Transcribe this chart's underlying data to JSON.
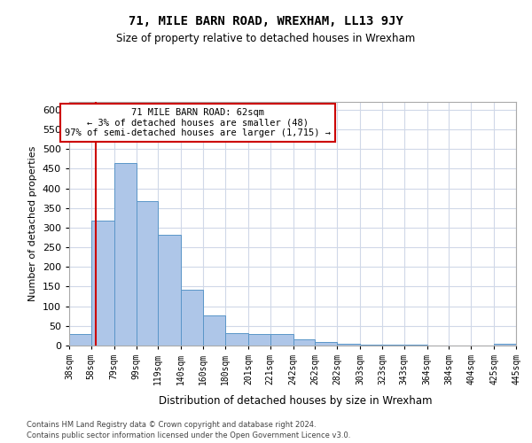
{
  "title": "71, MILE BARN ROAD, WREXHAM, LL13 9JY",
  "subtitle": "Size of property relative to detached houses in Wrexham",
  "xlabel": "Distribution of detached houses by size in Wrexham",
  "ylabel": "Number of detached properties",
  "footnote1": "Contains HM Land Registry data © Crown copyright and database right 2024.",
  "footnote2": "Contains public sector information licensed under the Open Government Licence v3.0.",
  "bin_labels": [
    "38sqm",
    "58sqm",
    "79sqm",
    "99sqm",
    "119sqm",
    "140sqm",
    "160sqm",
    "180sqm",
    "201sqm",
    "221sqm",
    "242sqm",
    "262sqm",
    "282sqm",
    "303sqm",
    "323sqm",
    "343sqm",
    "364sqm",
    "384sqm",
    "404sqm",
    "425sqm",
    "445sqm"
  ],
  "bar_values": [
    30,
    317,
    465,
    367,
    282,
    143,
    76,
    31,
    29,
    29,
    15,
    8,
    4,
    2,
    2,
    2,
    1,
    1,
    1,
    5
  ],
  "bar_color": "#aec6e8",
  "bar_edge_color": "#5a96c8",
  "property_line_x": 62,
  "bin_edges": [
    38,
    58,
    79,
    99,
    119,
    140,
    160,
    180,
    201,
    221,
    242,
    262,
    282,
    303,
    323,
    343,
    364,
    384,
    404,
    425,
    445
  ],
  "annotation_text": "71 MILE BARN ROAD: 62sqm\n← 3% of detached houses are smaller (48)\n97% of semi-detached houses are larger (1,715) →",
  "annotation_box_color": "#ffffff",
  "annotation_box_edge_color": "#cc0000",
  "red_line_color": "#cc0000",
  "ylim": [
    0,
    620
  ],
  "yticks": [
    0,
    50,
    100,
    150,
    200,
    250,
    300,
    350,
    400,
    450,
    500,
    550,
    600
  ],
  "background_color": "#ffffff",
  "grid_color": "#d0d8e8"
}
